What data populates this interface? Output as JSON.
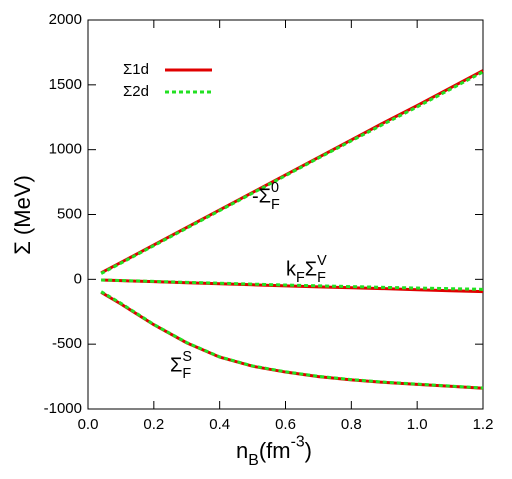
{
  "chart_data": {
    "type": "line",
    "x": [
      0.04,
      0.1,
      0.2,
      0.3,
      0.4,
      0.5,
      0.6,
      0.7,
      0.8,
      0.9,
      1.0,
      1.1,
      1.2
    ],
    "series": [
      {
        "name": "Σ1d",
        "color": "#e00000",
        "dash": "solid",
        "curves": [
          [
            50,
            130,
            265,
            400,
            535,
            670,
            805,
            940,
            1075,
            1210,
            1340,
            1475,
            1610
          ],
          [
            -5,
            -10,
            -18,
            -26,
            -34,
            -42,
            -50,
            -58,
            -65,
            -72,
            -80,
            -88,
            -95
          ],
          [
            -100,
            -190,
            -350,
            -490,
            -600,
            -670,
            -715,
            -750,
            -775,
            -795,
            -810,
            -825,
            -840
          ]
        ]
      },
      {
        "name": "Σ2d",
        "color": "#22e022",
        "dash": "dashed",
        "curves": [
          [
            45,
            125,
            260,
            395,
            530,
            665,
            800,
            935,
            1068,
            1200,
            1330,
            1465,
            1600
          ],
          [
            -5,
            -9,
            -16,
            -23,
            -30,
            -37,
            -44,
            -50,
            -56,
            -62,
            -67,
            -72,
            -77
          ],
          [
            -95,
            -185,
            -348,
            -488,
            -598,
            -668,
            -713,
            -748,
            -773,
            -793,
            -808,
            -823,
            -838
          ]
        ]
      }
    ],
    "annotations": [
      [
        {
          "text": "-Σ"
        },
        {
          "text": "0",
          "pos": "sup"
        },
        {
          "text": "F",
          "pos": "sub"
        }
      ],
      [
        {
          "text": "k"
        },
        {
          "text": "F",
          "pos": "sub"
        },
        {
          "text": "Σ"
        },
        {
          "text": "V",
          "pos": "sup"
        },
        {
          "text": "F",
          "pos": "sub"
        }
      ],
      [
        {
          "text": "Σ"
        },
        {
          "text": "S",
          "pos": "sup"
        },
        {
          "text": "F",
          "pos": "sub"
        }
      ]
    ],
    "x_label": [
      {
        "text": "n"
      },
      {
        "text": "B",
        "pos": "sub"
      },
      {
        "text": " (fm"
      },
      {
        "text": "-3",
        "pos": "sup"
      },
      {
        "text": ")"
      }
    ],
    "y_label": "Σ (MeV)",
    "xlim": [
      0,
      1.2
    ],
    "ylim": [
      -1000,
      2000
    ],
    "xticks": [
      {
        "value": 0,
        "label": "0.0"
      },
      0.2,
      0.4,
      0.6,
      0.8,
      {
        "value": 1,
        "label": "1.0"
      },
      1.2
    ],
    "yticks": [
      -1000,
      -500,
      0,
      500,
      1000,
      1500,
      2000
    ],
    "legend": "upper left"
  }
}
